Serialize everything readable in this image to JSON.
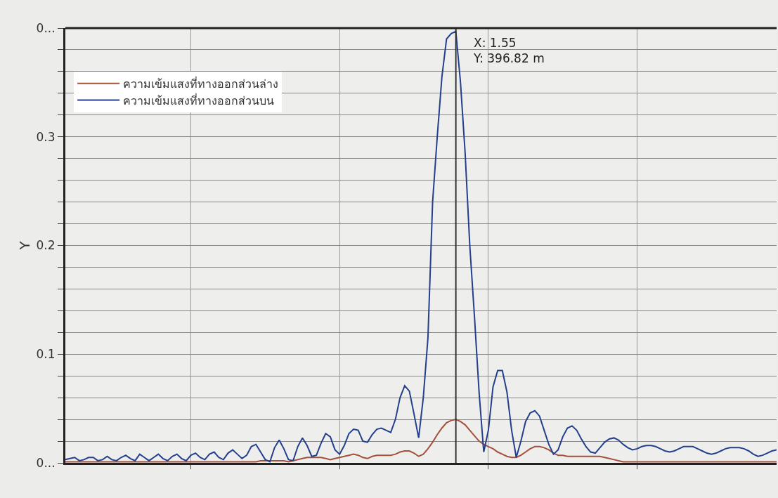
{
  "chart_data": {
    "type": "line",
    "ylabel": "Y",
    "categories": [
      null,
      null,
      null,
      null,
      null,
      null,
      null,
      null,
      null,
      null,
      null,
      null,
      null,
      null,
      null,
      null,
      null,
      null,
      null,
      null,
      null,
      null,
      null,
      null,
      null,
      null,
      null,
      null,
      null,
      null,
      null,
      null,
      null,
      null,
      null,
      null,
      null,
      null,
      null,
      null,
      null,
      null,
      null,
      null,
      null,
      null,
      null,
      null,
      null,
      null,
      null,
      null,
      null,
      null,
      null,
      null,
      null,
      null,
      null,
      null,
      null,
      null,
      null,
      null,
      null,
      null,
      null,
      null,
      null,
      null,
      null,
      null,
      null,
      null,
      null,
      null,
      null,
      null,
      null,
      null,
      null,
      null,
      null,
      null,
      null,
      null,
      null,
      null,
      null,
      null,
      null,
      null,
      null,
      null,
      null,
      null,
      null,
      null,
      null,
      null,
      null,
      null,
      null,
      null,
      null,
      null,
      null,
      null,
      null,
      null,
      null,
      null,
      null,
      null,
      null,
      null,
      null,
      null,
      null,
      null,
      null,
      null,
      null,
      null,
      null,
      null,
      null,
      null,
      null,
      null,
      null,
      null,
      null,
      null,
      null,
      null,
      null,
      null,
      null,
      null,
      null,
      null,
      null,
      null,
      null,
      null,
      null,
      null,
      null,
      null,
      null,
      null,
      null,
      null
    ],
    "series": [
      {
        "name": "ความเข้มแสงที่ทางออกส่วนล่าง",
        "color": "#a5503a",
        "values": [
          0.001,
          0.001,
          0.001,
          0.001,
          0.001,
          0.001,
          0.001,
          0.001,
          0.001,
          0.001,
          0.001,
          0.001,
          0.001,
          0.001,
          0.001,
          0.001,
          0.001,
          0.001,
          0.001,
          0.001,
          0.001,
          0.001,
          0.001,
          0.001,
          0.001,
          0.001,
          0.001,
          0.001,
          0.001,
          0.001,
          0.001,
          0.001,
          0.001,
          0.001,
          0.001,
          0.001,
          0.001,
          0.001,
          0.001,
          0.001,
          0.001,
          0.001,
          0.002,
          0.002,
          0.002,
          0.002,
          0.002,
          0.002,
          0.001,
          0.002,
          0.003,
          0.004,
          0.005,
          0.005,
          0.005,
          0.005,
          0.004,
          0.003,
          0.004,
          0.005,
          0.006,
          0.007,
          0.008,
          0.007,
          0.005,
          0.004,
          0.006,
          0.007,
          0.007,
          0.007,
          0.007,
          0.008,
          0.01,
          0.011,
          0.011,
          0.009,
          0.006,
          0.008,
          0.013,
          0.019,
          0.026,
          0.032,
          0.037,
          0.039,
          0.04,
          0.038,
          0.035,
          0.03,
          0.025,
          0.02,
          0.017,
          0.015,
          0.013,
          0.01,
          0.008,
          0.006,
          0.005,
          0.005,
          0.007,
          0.01,
          0.013,
          0.015,
          0.015,
          0.014,
          0.012,
          0.009,
          0.007,
          0.007,
          0.006,
          0.006,
          0.006,
          0.006,
          0.006,
          0.006,
          0.006,
          0.006,
          0.005,
          0.004,
          0.003,
          0.002,
          0.001,
          0.001,
          0.001,
          0.001,
          0.001,
          0.001,
          0.001,
          0.001,
          0.001,
          0.001,
          0.001,
          0.001,
          0.001,
          0.001,
          0.001,
          0.001,
          0.001,
          0.001,
          0.001,
          0.001,
          0.001,
          0.001,
          0.001,
          0.001,
          0.001,
          0.001,
          0.001,
          0.001,
          0.001,
          0.001,
          0.001,
          0.001,
          0.001,
          0.001
        ]
      },
      {
        "name": "ความเข้มแสงที่ทางออกส่วนบน",
        "color": "#23408e",
        "values": [
          0.003,
          0.004,
          0.005,
          0.002,
          0.003,
          0.005,
          0.005,
          0.002,
          0.003,
          0.006,
          0.003,
          0.002,
          0.005,
          0.007,
          0.004,
          0.002,
          0.008,
          0.005,
          0.002,
          0.005,
          0.008,
          0.004,
          0.002,
          0.006,
          0.008,
          0.004,
          0.002,
          0.007,
          0.009,
          0.005,
          0.003,
          0.008,
          0.01,
          0.005,
          0.003,
          0.009,
          0.012,
          0.008,
          0.004,
          0.007,
          0.015,
          0.017,
          0.01,
          0.003,
          0.001,
          0.014,
          0.021,
          0.013,
          0.003,
          0.002,
          0.015,
          0.023,
          0.016,
          0.006,
          0.007,
          0.018,
          0.027,
          0.024,
          0.012,
          0.008,
          0.016,
          0.027,
          0.031,
          0.03,
          0.02,
          0.019,
          0.026,
          0.031,
          0.032,
          0.03,
          0.028,
          0.04,
          0.06,
          0.071,
          0.066,
          0.045,
          0.023,
          0.06,
          0.115,
          0.24,
          0.3,
          0.355,
          0.39,
          0.395,
          0.397,
          0.35,
          0.285,
          0.2,
          0.135,
          0.065,
          0.01,
          0.03,
          0.07,
          0.085,
          0.085,
          0.065,
          0.03,
          0.005,
          0.02,
          0.038,
          0.046,
          0.048,
          0.043,
          0.03,
          0.017,
          0.008,
          0.012,
          0.024,
          0.032,
          0.034,
          0.03,
          0.022,
          0.015,
          0.01,
          0.009,
          0.014,
          0.019,
          0.022,
          0.023,
          0.021,
          0.017,
          0.014,
          0.012,
          0.013,
          0.015,
          0.016,
          0.016,
          0.015,
          0.013,
          0.011,
          0.01,
          0.011,
          0.013,
          0.015,
          0.015,
          0.015,
          0.013,
          0.011,
          0.009,
          0.008,
          0.009,
          0.011,
          0.013,
          0.014,
          0.014,
          0.014,
          0.013,
          0.011,
          0.008,
          0.006,
          0.007,
          0.009,
          0.011,
          0.012
        ]
      }
    ],
    "ylim": [
      0,
      0.4
    ],
    "yticks": [
      {
        "value": 0,
        "label": "0..."
      },
      {
        "value": 0.02,
        "label": null
      },
      {
        "value": 0.04,
        "label": null
      },
      {
        "value": 0.06,
        "label": null
      },
      {
        "value": 0.08,
        "label": null
      },
      0.1,
      {
        "value": 0.12,
        "label": null
      },
      {
        "value": 0.14,
        "label": null
      },
      {
        "value": 0.16,
        "label": null
      },
      {
        "value": 0.18,
        "label": null
      },
      0.2,
      {
        "value": 0.22,
        "label": null
      },
      {
        "value": 0.24,
        "label": null
      },
      {
        "value": 0.26,
        "label": null
      },
      {
        "value": 0.28,
        "label": null
      },
      0.3,
      {
        "value": 0.32,
        "label": null
      },
      {
        "value": 0.34,
        "label": null
      },
      {
        "value": 0.36,
        "label": null
      },
      {
        "value": 0.38,
        "label": null
      },
      {
        "value": 0.4,
        "label": "0..."
      }
    ],
    "annotations": [
      "X: 1.55\nY: 396.82 m"
    ],
    "grid": true,
    "legend": "top left",
    "tick_labels": "y",
    "marker": "none",
    "line_style": "solid"
  }
}
